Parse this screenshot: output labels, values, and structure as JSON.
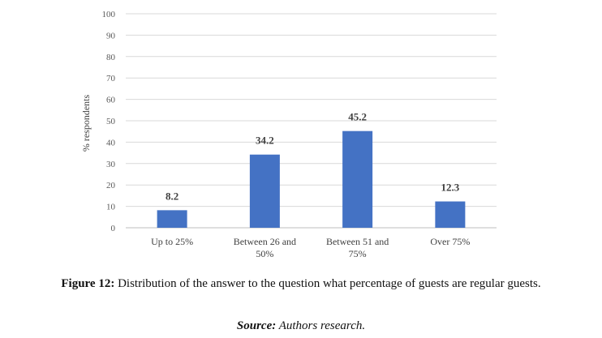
{
  "chart_data": {
    "type": "bar",
    "categories": [
      "Up to 25%",
      "Between 26 and 50%",
      "Between 51 and 75%",
      "Over 75%"
    ],
    "category_lines": [
      [
        "Up to 25%"
      ],
      [
        "Between 26 and",
        "50%"
      ],
      [
        "Between 51 and",
        "75%"
      ],
      [
        "Over 75%"
      ]
    ],
    "values": [
      8.2,
      34.2,
      45.2,
      12.3
    ],
    "data_labels": [
      "8.2",
      "34.2",
      "45.2",
      "12.3"
    ],
    "ylabel": "% respondents",
    "ylim": [
      0,
      100
    ],
    "yticks": [
      0,
      10,
      20,
      30,
      40,
      50,
      60,
      70,
      80,
      90,
      100
    ],
    "grid": true,
    "bar_color": "#4472C4"
  },
  "caption": {
    "label": "Figure 12:",
    "text": "Distribution of the answer to the question what percentage of guests are regular guests."
  },
  "source": {
    "label": "Source:",
    "text": "Authors research."
  }
}
